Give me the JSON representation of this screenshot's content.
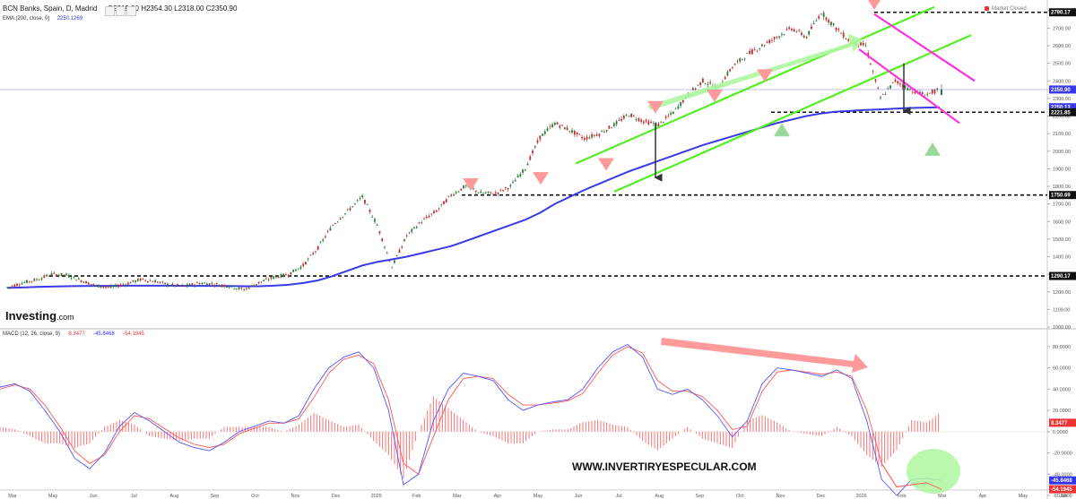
{
  "header": {
    "symbol": "BCN Banks, Spain, D, Madrid",
    "ohlc": "O2319.90  H2354.30  L2318.00  C2350.90",
    "ema_label": "EMA (200, close, 0)",
    "ema_value": "2250.1269",
    "market_status": "Market Closed",
    "logo_main": "Investing",
    "logo_suffix": ".com"
  },
  "watermark": "WWW.INVERTIRYESPECULAR.COM",
  "macd_header": {
    "label": "MACD (12, 26, close, 9)",
    "v1": "8.3477",
    "v2": "-45.8468",
    "v3": "-54.1945"
  },
  "colors": {
    "ema": "#3a3ae6",
    "channel": "#55ee22",
    "downchannel": "#ff33dd",
    "bull_candle": "#2a7a3a",
    "bear_candle": "#c03030",
    "macd_line": "#5555ff",
    "signal_line": "#ff5555",
    "hist": "#ff6666",
    "price_tag": "#3a3ae6"
  },
  "chart_data": [
    {
      "type": "line",
      "title": "BCN Banks, Spain, D, Madrid",
      "y_axis_ticks": [
        "2800.00",
        "2700.00",
        "2600.00",
        "2500.00",
        "2400.00",
        "2300.00",
        "2200.00",
        "2100.00",
        "2000.00",
        "1900.00",
        "1800.00",
        "1700.00",
        "1600.00",
        "1500.00",
        "1400.00",
        "1300.00",
        "1200.00",
        "1100.00",
        "1000.00"
      ],
      "x_axis_ticks": [
        "Mar",
        "May",
        "Jun",
        "Jul",
        "Aug",
        "Sep",
        "Oct",
        "Nov",
        "Dec",
        "2025",
        "Feb",
        "Mar",
        "Apr",
        "May",
        "Jun",
        "Jul",
        "Aug",
        "Sep",
        "Oct",
        "Nov",
        "Dec",
        "2026",
        "Feb",
        "Mar",
        "Apr",
        "May",
        "Jun"
      ],
      "ylim": [
        1000,
        2850
      ],
      "price_labels": [
        "2790.17",
        "2350.90",
        "2250.13",
        "2221.85",
        "1750.69",
        "1290.17"
      ],
      "levels": [
        2790.17,
        2221.85,
        1750.69,
        1290.17
      ],
      "series": [
        {
          "name": "Price",
          "values": [
            1225,
            1250,
            1270,
            1300,
            1295,
            1265,
            1235,
            1225,
            1245,
            1270,
            1260,
            1238,
            1232,
            1250,
            1245,
            1232,
            1212,
            1252,
            1282,
            1300,
            1350,
            1450,
            1580,
            1660,
            1740,
            1580,
            1340,
            1520,
            1600,
            1660,
            1750,
            1802,
            1762,
            1760,
            1800,
            1902,
            2080,
            2160,
            2120,
            2072,
            2100,
            2150,
            2210,
            2170,
            2150,
            2220,
            2320,
            2400,
            2360,
            2480,
            2550,
            2600,
            2650,
            2700,
            2650,
            2790,
            2700,
            2620,
            2600,
            2300,
            2400,
            2350,
            2320,
            2350.9
          ]
        },
        {
          "name": "EMA (200, close, 0)",
          "values": [
            1222,
            1225,
            1228,
            1230,
            1232,
            1233,
            1234,
            1234,
            1235,
            1235,
            1235,
            1235,
            1234,
            1234,
            1234,
            1233,
            1232,
            1232,
            1235,
            1240,
            1250,
            1265,
            1290,
            1320,
            1350,
            1370,
            1385,
            1400,
            1420,
            1440,
            1460,
            1490,
            1520,
            1550,
            1580,
            1610,
            1650,
            1700,
            1740,
            1780,
            1815,
            1850,
            1885,
            1915,
            1945,
            1975,
            2005,
            2035,
            2060,
            2085,
            2110,
            2135,
            2160,
            2180,
            2200,
            2215,
            2225,
            2230,
            2235,
            2238,
            2242,
            2246,
            2248,
            2250.13
          ]
        }
      ],
      "annotations": [
        "up channel",
        "down channel",
        "sell triangles",
        "buy triangles"
      ]
    },
    {
      "type": "line",
      "title": "MACD (12, 26, close, 9)",
      "y_axis_ticks": [
        "80.0000",
        "60.0000",
        "40.0000",
        "20.0000",
        "0.0000",
        "-20.0000",
        "-40.0000",
        "-60.0000"
      ],
      "ylim": [
        -60,
        90
      ],
      "price_labels": [
        "8.3477",
        "-45.8468",
        "-54.1945"
      ],
      "series": [
        {
          "name": "MACD",
          "values": [
            42,
            45,
            38,
            20,
            0,
            -25,
            -35,
            -20,
            5,
            18,
            10,
            0,
            -10,
            -15,
            -18,
            -10,
            0,
            5,
            10,
            8,
            15,
            40,
            60,
            70,
            75,
            60,
            20,
            -50,
            -40,
            10,
            40,
            55,
            52,
            48,
            30,
            20,
            25,
            28,
            30,
            40,
            60,
            75,
            82,
            70,
            40,
            35,
            40,
            30,
            15,
            -5,
            10,
            45,
            60,
            58,
            55,
            52,
            58,
            50,
            10,
            -45,
            -60,
            -45,
            -44,
            -45.85
          ]
        },
        {
          "name": "Signal",
          "values": [
            40,
            44,
            40,
            25,
            5,
            -18,
            -30,
            -22,
            0,
            15,
            12,
            3,
            -6,
            -12,
            -15,
            -12,
            -2,
            3,
            8,
            8,
            12,
            32,
            55,
            68,
            72,
            64,
            30,
            -30,
            -40,
            -5,
            30,
            50,
            52,
            50,
            35,
            25,
            25,
            27,
            29,
            36,
            55,
            72,
            80,
            74,
            48,
            38,
            38,
            33,
            20,
            2,
            5,
            38,
            56,
            58,
            56,
            54,
            56,
            52,
            20,
            -30,
            -52,
            -50,
            -48,
            -54.19
          ]
        }
      ]
    }
  ]
}
